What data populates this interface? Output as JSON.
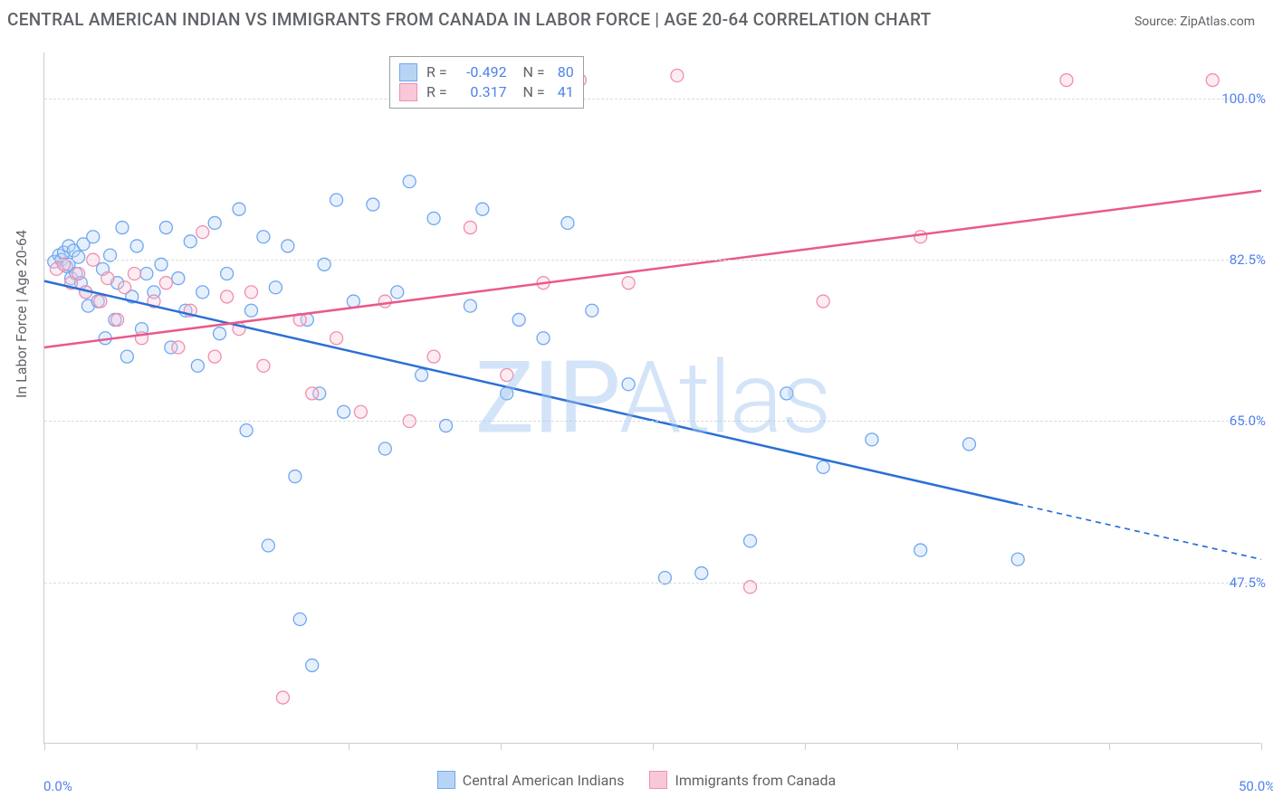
{
  "title": "CENTRAL AMERICAN INDIAN VS IMMIGRANTS FROM CANADA IN LABOR FORCE | AGE 20-64 CORRELATION CHART",
  "source": "Source: ZipAtlas.com",
  "ylabel": "In Labor Force | Age 20-64",
  "watermark": "ZIPAtlas",
  "chart": {
    "type": "scatter",
    "xlim": [
      0,
      50
    ],
    "ylim": [
      30,
      105
    ],
    "x_tick_positions": [
      0,
      6.25,
      12.5,
      18.75,
      25,
      31.25,
      37.5,
      43.75,
      50
    ],
    "x_tick_labels": {
      "0": "0.0%",
      "50": "50.0%"
    },
    "y_tick_positions": [
      47.5,
      65,
      82.5,
      100
    ],
    "y_tick_labels": {
      "47.5": "47.5%",
      "65": "65.0%",
      "82.5": "82.5%",
      "100": "100.0%"
    },
    "y_grid_dashed": true,
    "background_color": "#ffffff",
    "grid_color": "#dadce0",
    "marker_radius": 7,
    "marker_fill_opacity": 0.35,
    "marker_stroke_width": 1.3,
    "series": [
      {
        "name": "Central American Indians",
        "color_stroke": "#6fa8f0",
        "color_fill": "#b8d4f5",
        "R": -0.492,
        "N": 80,
        "trend": {
          "x0": 0,
          "y0": 80.2,
          "x1": 40,
          "y1": 56.0,
          "x_solid_end": 40,
          "x_dash_end": 50,
          "y_dash_end": 50.0,
          "color": "#2b6fd6",
          "width": 2.5
        },
        "points": [
          [
            0.4,
            82.3
          ],
          [
            0.6,
            83.0
          ],
          [
            0.7,
            82.5
          ],
          [
            0.8,
            83.3
          ],
          [
            0.9,
            81.8
          ],
          [
            1.0,
            82.0
          ],
          [
            1.0,
            84.0
          ],
          [
            1.1,
            80.5
          ],
          [
            1.2,
            83.5
          ],
          [
            1.3,
            81.0
          ],
          [
            1.4,
            82.8
          ],
          [
            1.5,
            80.0
          ],
          [
            1.6,
            84.2
          ],
          [
            1.7,
            79.0
          ],
          [
            1.8,
            77.5
          ],
          [
            2.0,
            85.0
          ],
          [
            2.2,
            78.0
          ],
          [
            2.4,
            81.5
          ],
          [
            2.5,
            74.0
          ],
          [
            2.7,
            83.0
          ],
          [
            2.9,
            76.0
          ],
          [
            3.0,
            80.0
          ],
          [
            3.2,
            86.0
          ],
          [
            3.4,
            72.0
          ],
          [
            3.6,
            78.5
          ],
          [
            3.8,
            84.0
          ],
          [
            4.0,
            75.0
          ],
          [
            4.2,
            81.0
          ],
          [
            4.5,
            79.0
          ],
          [
            4.8,
            82.0
          ],
          [
            5.0,
            86.0
          ],
          [
            5.2,
            73.0
          ],
          [
            5.5,
            80.5
          ],
          [
            5.8,
            77.0
          ],
          [
            6.0,
            84.5
          ],
          [
            6.3,
            71.0
          ],
          [
            6.5,
            79.0
          ],
          [
            7.0,
            86.5
          ],
          [
            7.2,
            74.5
          ],
          [
            7.5,
            81.0
          ],
          [
            8.0,
            88.0
          ],
          [
            8.3,
            64.0
          ],
          [
            8.5,
            77.0
          ],
          [
            9.0,
            85.0
          ],
          [
            9.2,
            51.5
          ],
          [
            9.5,
            79.5
          ],
          [
            10.0,
            84.0
          ],
          [
            10.3,
            59.0
          ],
          [
            10.5,
            43.5
          ],
          [
            10.8,
            76.0
          ],
          [
            11.0,
            38.5
          ],
          [
            11.3,
            68.0
          ],
          [
            11.5,
            82.0
          ],
          [
            12.0,
            89.0
          ],
          [
            12.3,
            66.0
          ],
          [
            12.7,
            78.0
          ],
          [
            13.5,
            88.5
          ],
          [
            14.0,
            62.0
          ],
          [
            14.5,
            79.0
          ],
          [
            15.0,
            91.0
          ],
          [
            15.5,
            70.0
          ],
          [
            16.0,
            87.0
          ],
          [
            16.5,
            64.5
          ],
          [
            17.5,
            77.5
          ],
          [
            18.0,
            88.0
          ],
          [
            19.0,
            68.0
          ],
          [
            19.5,
            76.0
          ],
          [
            20.5,
            74.0
          ],
          [
            21.5,
            86.5
          ],
          [
            22.5,
            77.0
          ],
          [
            24.0,
            69.0
          ],
          [
            25.5,
            48.0
          ],
          [
            27.0,
            48.5
          ],
          [
            29.0,
            52.0
          ],
          [
            30.5,
            68.0
          ],
          [
            32.0,
            60.0
          ],
          [
            34.0,
            63.0
          ],
          [
            36.0,
            51.0
          ],
          [
            38.0,
            62.5
          ],
          [
            40.0,
            50.0
          ]
        ]
      },
      {
        "name": "Immigrants from Canada",
        "color_stroke": "#f08fb0",
        "color_fill": "#f8c8d8",
        "R": 0.317,
        "N": 41,
        "trend": {
          "x0": 0,
          "y0": 73.0,
          "x1": 50,
          "y1": 90.0,
          "color": "#e85a8a",
          "width": 2.5
        },
        "points": [
          [
            0.5,
            81.5
          ],
          [
            0.8,
            82.0
          ],
          [
            1.1,
            80.0
          ],
          [
            1.4,
            81.0
          ],
          [
            1.7,
            79.0
          ],
          [
            2.0,
            82.5
          ],
          [
            2.3,
            78.0
          ],
          [
            2.6,
            80.5
          ],
          [
            3.0,
            76.0
          ],
          [
            3.3,
            79.5
          ],
          [
            3.7,
            81.0
          ],
          [
            4.0,
            74.0
          ],
          [
            4.5,
            78.0
          ],
          [
            5.0,
            80.0
          ],
          [
            5.5,
            73.0
          ],
          [
            6.0,
            77.0
          ],
          [
            6.5,
            85.5
          ],
          [
            7.0,
            72.0
          ],
          [
            7.5,
            78.5
          ],
          [
            8.0,
            75.0
          ],
          [
            8.5,
            79.0
          ],
          [
            9.0,
            71.0
          ],
          [
            9.8,
            35.0
          ],
          [
            10.5,
            76.0
          ],
          [
            11.0,
            68.0
          ],
          [
            12.0,
            74.0
          ],
          [
            13.0,
            66.0
          ],
          [
            14.0,
            78.0
          ],
          [
            15.0,
            65.0
          ],
          [
            16.0,
            72.0
          ],
          [
            17.5,
            86.0
          ],
          [
            19.0,
            70.0
          ],
          [
            20.5,
            80.0
          ],
          [
            22.0,
            102.0
          ],
          [
            24.0,
            80.0
          ],
          [
            26.0,
            102.5
          ],
          [
            29.0,
            47.0
          ],
          [
            32.0,
            78.0
          ],
          [
            36.0,
            85.0
          ],
          [
            42.0,
            102.0
          ],
          [
            48.0,
            102.0
          ]
        ]
      }
    ]
  },
  "legend_top": {
    "rows": [
      {
        "swatch_fill": "#b8d4f5",
        "swatch_stroke": "#6fa8f0",
        "R": "-0.492",
        "N": "80"
      },
      {
        "swatch_fill": "#f8c8d8",
        "swatch_stroke": "#f08fb0",
        "R": "0.317",
        "N": "41"
      }
    ],
    "col_labels": {
      "R": "R =",
      "N": "N ="
    }
  },
  "legend_bottom": [
    {
      "swatch_fill": "#b8d4f5",
      "swatch_stroke": "#6fa8f0",
      "label": "Central American Indians"
    },
    {
      "swatch_fill": "#f8c8d8",
      "swatch_stroke": "#f08fb0",
      "label": "Immigrants from Canada"
    }
  ]
}
